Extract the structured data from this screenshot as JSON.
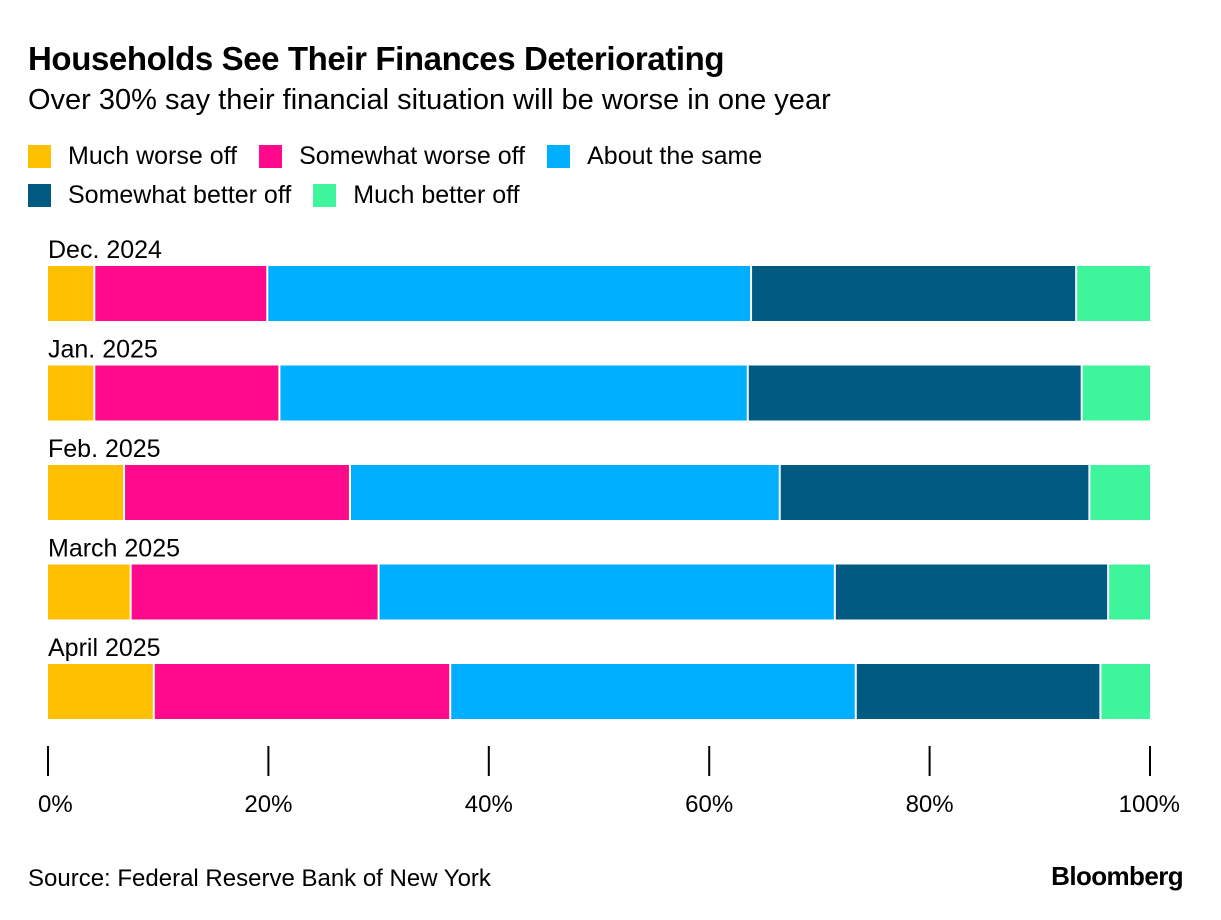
{
  "chart_data": {
    "type": "bar",
    "orientation": "horizontal",
    "stacked": true,
    "title": "Households See Their Finances Deteriorating",
    "subtitle": "Over 30% say their financial situation will be worse in one year",
    "categories": [
      "Dec. 2024",
      "Jan. 2025",
      "Feb. 2025",
      "March 2025",
      "April 2025"
    ],
    "series": [
      {
        "name": "Much worse off",
        "color": "#FFC000",
        "values": [
          4.2,
          4.2,
          6.9,
          7.5,
          9.6
        ]
      },
      {
        "name": "Somewhat worse off",
        "color": "#FF0A8C",
        "values": [
          15.7,
          16.8,
          20.5,
          22.5,
          26.9
        ]
      },
      {
        "name": "About the same",
        "color": "#00AFFF",
        "values": [
          43.9,
          42.5,
          39.0,
          41.4,
          36.8
        ]
      },
      {
        "name": "Somewhat better off",
        "color": "#005A82",
        "values": [
          29.5,
          30.3,
          28.1,
          24.8,
          22.2
        ]
      },
      {
        "name": "Much better off",
        "color": "#3FF59B",
        "values": [
          6.7,
          6.2,
          5.5,
          3.8,
          4.5
        ]
      }
    ],
    "xlim": [
      0,
      100
    ],
    "xticks": [
      0,
      20,
      40,
      60,
      80,
      100
    ],
    "xtick_labels": [
      "0%",
      "20%",
      "40%",
      "60%",
      "80%",
      "100%"
    ],
    "xlabel": "",
    "ylabel": "",
    "legend_position": "top",
    "grid": false
  },
  "source": "Source: Federal Reserve Bank of New York",
  "brand": "Bloomberg"
}
